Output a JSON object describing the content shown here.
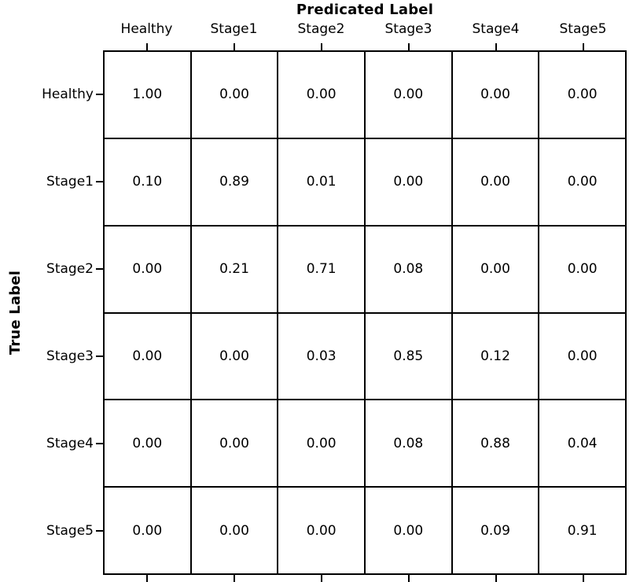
{
  "chart_data": {
    "type": "heatmap",
    "title": "Predicated Label",
    "xlabel": "Predicated Label",
    "ylabel": "True Label",
    "x_categories": [
      "Healthy",
      "Stage1",
      "Stage2",
      "Stage3",
      "Stage4",
      "Stage5"
    ],
    "y_categories": [
      "Healthy",
      "Stage1",
      "Stage2",
      "Stage3",
      "Stage4",
      "Stage5"
    ],
    "matrix": [
      [
        1.0,
        0.0,
        0.0,
        0.0,
        0.0,
        0.0
      ],
      [
        0.1,
        0.89,
        0.01,
        0.0,
        0.0,
        0.0
      ],
      [
        0.0,
        0.21,
        0.71,
        0.08,
        0.0,
        0.0
      ],
      [
        0.0,
        0.0,
        0.03,
        0.85,
        0.12,
        0.0
      ],
      [
        0.0,
        0.0,
        0.0,
        0.08,
        0.88,
        0.04
      ],
      [
        0.0,
        0.0,
        0.0,
        0.0,
        0.09,
        0.91
      ]
    ],
    "cell_text": [
      [
        "1.00",
        "0.00",
        "0.00",
        "0.00",
        "0.00",
        "0.00"
      ],
      [
        "0.10",
        "0.89",
        "0.01",
        "0.00",
        "0.00",
        "0.00"
      ],
      [
        "0.00",
        "0.21",
        "0.71",
        "0.08",
        "0.00",
        "0.00"
      ],
      [
        "0.00",
        "0.00",
        "0.03",
        "0.85",
        "0.12",
        "0.00"
      ],
      [
        "0.00",
        "0.00",
        "0.00",
        "0.08",
        "0.88",
        "0.04"
      ],
      [
        "0.00",
        "0.00",
        "0.00",
        "0.00",
        "0.09",
        "0.91"
      ]
    ],
    "legend": "none",
    "grid": "on",
    "colors": {
      "cell_background": "#ffffff",
      "grid_line": "#000000",
      "text": "#000000",
      "background": "#ffffff"
    }
  }
}
